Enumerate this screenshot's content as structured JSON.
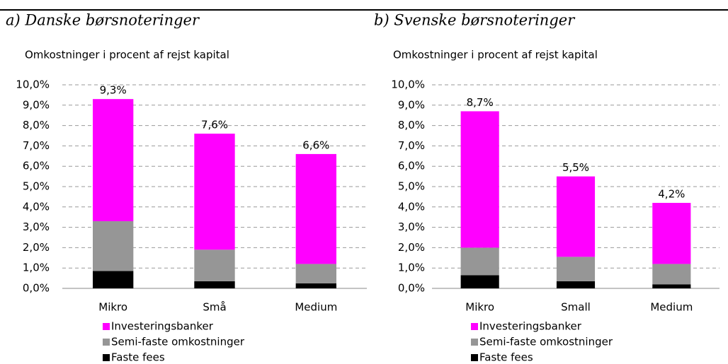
{
  "chart_data": [
    {
      "type": "stacked_bar",
      "title": "a) Danske børsnoteringer",
      "subtitle": "Omkostninger i procent af rejst kapital",
      "categories": [
        "Mikro",
        "Små",
        "Medium"
      ],
      "series": [
        {
          "name": "Faste fees",
          "color": "#000000",
          "values": [
            0.85,
            0.35,
            0.25
          ]
        },
        {
          "name": "Semi-faste omkostninger",
          "color": "#969696",
          "values": [
            2.45,
            1.55,
            0.95
          ]
        },
        {
          "name": "Investeringsbanker",
          "color": "#ff00ff",
          "values": [
            6.0,
            5.7,
            5.4
          ]
        }
      ],
      "total_labels": [
        "9,3%",
        "7,6%",
        "6,6%"
      ],
      "ylim": [
        0,
        10
      ],
      "yticks": [
        {
          "value": 0,
          "label": "0,0%"
        },
        {
          "value": 1,
          "label": "1,0%"
        },
        {
          "value": 2,
          "label": "2,0%"
        },
        {
          "value": 3,
          "label": "3,0%"
        },
        {
          "value": 4,
          "label": "4,0%"
        },
        {
          "value": 5,
          "label": "5,0%"
        },
        {
          "value": 6,
          "label": "6,0%"
        },
        {
          "value": 7,
          "label": "7,0%"
        },
        {
          "value": 8,
          "label": "8,0%"
        },
        {
          "value": 9,
          "label": "9,0%"
        },
        {
          "value": 10,
          "label": "10,0%"
        }
      ],
      "grid": true
    },
    {
      "type": "stacked_bar",
      "title": "b) Svenske børsnoteringer",
      "subtitle": "Omkostninger i procent af rejst kapital",
      "categories": [
        "Mikro",
        "Small",
        "Medium"
      ],
      "series": [
        {
          "name": "Faste fees",
          "color": "#000000",
          "values": [
            0.65,
            0.35,
            0.2
          ]
        },
        {
          "name": "Semi-faste omkostninger",
          "color": "#969696",
          "values": [
            1.35,
            1.2,
            1.0
          ]
        },
        {
          "name": "Investeringsbanker",
          "color": "#ff00ff",
          "values": [
            6.7,
            3.95,
            3.0
          ]
        }
      ],
      "total_labels": [
        "8,7%",
        "5,5%",
        "4,2%"
      ],
      "ylim": [
        0,
        10
      ],
      "yticks": [
        {
          "value": 0,
          "label": "0,0%"
        },
        {
          "value": 1,
          "label": "1,0%"
        },
        {
          "value": 2,
          "label": "2,0%"
        },
        {
          "value": 3,
          "label": "3,0%"
        },
        {
          "value": 4,
          "label": "4,0%"
        },
        {
          "value": 5,
          "label": "5,0%"
        },
        {
          "value": 6,
          "label": "6,0%"
        },
        {
          "value": 7,
          "label": "7,0%"
        },
        {
          "value": 8,
          "label": "8,0%"
        },
        {
          "value": 9,
          "label": "9,0%"
        },
        {
          "value": 10,
          "label": "10,0%"
        }
      ],
      "grid": true
    }
  ]
}
